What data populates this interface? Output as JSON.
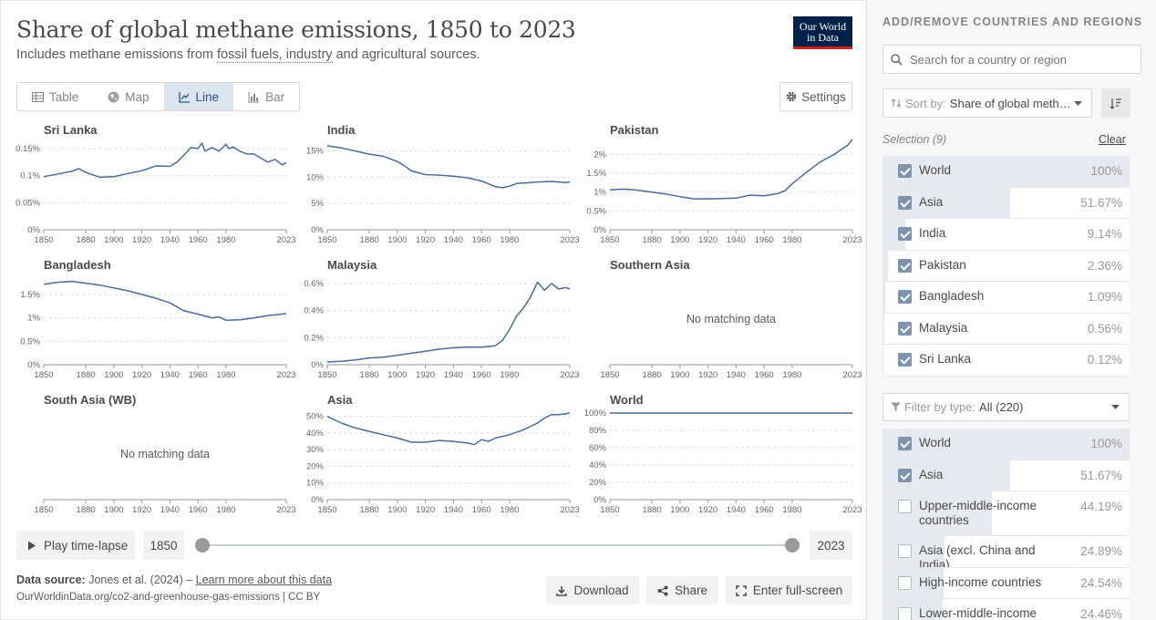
{
  "header": {
    "title": "Share of global methane emissions, 1850 to 2023",
    "subtitle_pre": "Includes methane emissions from ",
    "subtitle_link": "fossil fuels, industry",
    "subtitle_post": " and agricultural sources.",
    "logo_line1": "Our World",
    "logo_line2": "in Data"
  },
  "tabs": [
    {
      "label": "Table",
      "icon": "table-icon"
    },
    {
      "label": "Map",
      "icon": "globe-icon"
    },
    {
      "label": "Line",
      "icon": "line-chart-icon",
      "active": true
    },
    {
      "label": "Bar",
      "icon": "bar-chart-icon"
    }
  ],
  "settings_label": "Settings",
  "timeline": {
    "play_label": "Play time-lapse",
    "start": "1850",
    "end": "2023"
  },
  "footer": {
    "source_label": "Data source:",
    "source_text": " Jones et al. (2024) – ",
    "source_link": "Learn more about this data",
    "url": "OurWorldinData.org/co2-and-greenhouse-gas-emissions | CC BY",
    "download": "Download",
    "share": "Share",
    "fullscreen": "Enter full-screen"
  },
  "no_data_text": "No matching data",
  "chart_data": [
    {
      "type": "line",
      "title": "Sri Lanka",
      "x_ticks": [
        "1850",
        "1880",
        "1900",
        "1920",
        "1940",
        "1960",
        "1980",
        "2023"
      ],
      "y_ticks": [
        "0%",
        "0.05%",
        "0.1%",
        "0.15%"
      ],
      "ylim": [
        0,
        0.16
      ],
      "x": [
        1850,
        1860,
        1870,
        1875,
        1880,
        1890,
        1900,
        1910,
        1920,
        1930,
        1940,
        1945,
        1950,
        1955,
        1960,
        1963,
        1965,
        1970,
        1975,
        1980,
        1982,
        1985,
        1990,
        1995,
        2000,
        2005,
        2010,
        2015,
        2020,
        2023
      ],
      "y": [
        0.098,
        0.103,
        0.108,
        0.113,
        0.106,
        0.097,
        0.098,
        0.104,
        0.109,
        0.118,
        0.117,
        0.125,
        0.138,
        0.152,
        0.15,
        0.16,
        0.145,
        0.152,
        0.145,
        0.158,
        0.15,
        0.153,
        0.145,
        0.14,
        0.14,
        0.132,
        0.125,
        0.13,
        0.12,
        0.124
      ]
    },
    {
      "type": "line",
      "title": "India",
      "x_ticks": [
        "1850",
        "1880",
        "1900",
        "1920",
        "1940",
        "1960",
        "1980",
        "2023"
      ],
      "y_ticks": [
        "0%",
        "5%",
        "10%",
        "15%"
      ],
      "ylim": [
        0,
        16.5
      ],
      "x": [
        1850,
        1860,
        1870,
        1880,
        1890,
        1900,
        1905,
        1910,
        1920,
        1930,
        1940,
        1950,
        1960,
        1970,
        1975,
        1980,
        1985,
        1990,
        2000,
        2010,
        2020,
        2023
      ],
      "y": [
        16.0,
        15.6,
        15.0,
        14.4,
        14.0,
        13.0,
        12.2,
        11.2,
        10.5,
        10.4,
        10.2,
        9.9,
        9.3,
        8.2,
        8.0,
        8.3,
        8.8,
        8.9,
        9.1,
        9.2,
        9.0,
        9.1
      ]
    },
    {
      "type": "line",
      "title": "Pakistan",
      "x_ticks": [
        "1850",
        "1880",
        "1900",
        "1920",
        "1940",
        "1960",
        "1980",
        "2023"
      ],
      "y_ticks": [
        "0%",
        "0.5%",
        "1%",
        "1.5%",
        "2%"
      ],
      "ylim": [
        0,
        2.3
      ],
      "x": [
        1850,
        1860,
        1870,
        1880,
        1890,
        1900,
        1910,
        1920,
        1930,
        1940,
        1950,
        1960,
        1970,
        1975,
        1980,
        1990,
        2000,
        2010,
        2020,
        2023
      ],
      "y": [
        1.06,
        1.08,
        1.05,
        1.0,
        0.95,
        0.88,
        0.82,
        0.82,
        0.83,
        0.84,
        0.92,
        0.9,
        0.96,
        1.04,
        1.22,
        1.52,
        1.8,
        2.0,
        2.26,
        2.4
      ]
    },
    {
      "type": "line",
      "title": "Bangladesh",
      "x_ticks": [
        "1850",
        "1880",
        "1900",
        "1920",
        "1940",
        "1960",
        "1980",
        "2023"
      ],
      "y_ticks": [
        "0%",
        "0.5%",
        "1%",
        "1.5%"
      ],
      "ylim": [
        0,
        1.85
      ],
      "x": [
        1850,
        1860,
        1870,
        1880,
        1890,
        1900,
        1910,
        1920,
        1930,
        1940,
        1950,
        1960,
        1970,
        1975,
        1980,
        1990,
        2000,
        2010,
        2020,
        2023
      ],
      "y": [
        1.72,
        1.76,
        1.78,
        1.74,
        1.7,
        1.64,
        1.58,
        1.5,
        1.42,
        1.32,
        1.15,
        1.08,
        1.0,
        1.02,
        0.95,
        0.96,
        1.0,
        1.05,
        1.08,
        1.09
      ]
    },
    {
      "type": "line",
      "title": "Malaysia",
      "x_ticks": [
        "1850",
        "1880",
        "1900",
        "1920",
        "1940",
        "1960",
        "1980",
        "2023"
      ],
      "y_ticks": [
        "0%",
        "0.2%",
        "0.4%",
        "0.6%"
      ],
      "ylim": [
        0,
        0.64
      ],
      "x": [
        1850,
        1860,
        1870,
        1880,
        1890,
        1900,
        1910,
        1920,
        1930,
        1940,
        1950,
        1960,
        1970,
        1975,
        1980,
        1985,
        1990,
        1995,
        2000,
        2005,
        2010,
        2015,
        2020,
        2023
      ],
      "y": [
        0.02,
        0.025,
        0.035,
        0.05,
        0.055,
        0.07,
        0.085,
        0.1,
        0.115,
        0.125,
        0.13,
        0.13,
        0.14,
        0.18,
        0.26,
        0.36,
        0.42,
        0.5,
        0.61,
        0.55,
        0.6,
        0.56,
        0.57,
        0.56
      ]
    },
    {
      "type": "line",
      "title": "Southern Asia",
      "x_ticks": [
        "1850",
        "1880",
        "1900",
        "1920",
        "1940",
        "1960",
        "1980",
        "2023"
      ],
      "y_ticks": [],
      "no_data": true,
      "x": [],
      "y": []
    },
    {
      "type": "line",
      "title": "South Asia (WB)",
      "x_ticks": [
        "1850",
        "1880",
        "1900",
        "1920",
        "1940",
        "1960",
        "1980",
        "2023"
      ],
      "y_ticks": [],
      "no_data": true,
      "x": [],
      "y": []
    },
    {
      "type": "line",
      "title": "Asia",
      "x_ticks": [
        "1850",
        "1880",
        "1900",
        "1920",
        "1940",
        "1960",
        "1980",
        "2023"
      ],
      "y_ticks": [
        "0%",
        "10%",
        "20%",
        "30%",
        "40%",
        "50%"
      ],
      "ylim": [
        0,
        52
      ],
      "x": [
        1850,
        1860,
        1870,
        1880,
        1890,
        1900,
        1910,
        1920,
        1930,
        1940,
        1950,
        1955,
        1960,
        1965,
        1970,
        1980,
        1990,
        2000,
        2005,
        2010,
        2015,
        2020,
        2023
      ],
      "y": [
        50,
        46,
        43,
        41,
        39,
        37,
        34.5,
        34.5,
        35.5,
        35,
        34,
        33,
        36,
        35,
        37,
        39,
        42,
        46,
        49,
        51,
        51,
        51.5,
        52
      ]
    },
    {
      "type": "line",
      "title": "World",
      "x_ticks": [
        "1850",
        "1880",
        "1900",
        "1920",
        "1940",
        "1960",
        "1980",
        "2023"
      ],
      "y_ticks": [
        "0%",
        "20%",
        "40%",
        "60%",
        "80%",
        "100%"
      ],
      "ylim": [
        0,
        100
      ],
      "x": [
        1850,
        2023
      ],
      "y": [
        100,
        100
      ]
    }
  ],
  "sidebar": {
    "title": "ADD/REMOVE COUNTRIES AND REGIONS",
    "search_placeholder": "Search for a country or region",
    "sort_label": "Sort by:",
    "sort_value": "Share of global meth…",
    "selection_label": "Selection (9)",
    "clear_label": "Clear",
    "filter_label": "Filter by type:",
    "filter_value": "All (220)",
    "selected": [
      {
        "name": "World",
        "pct": "100%",
        "share": 100,
        "checked": true
      },
      {
        "name": "Asia",
        "pct": "51.67%",
        "share": 51.67,
        "checked": true
      },
      {
        "name": "India",
        "pct": "9.14%",
        "share": 9.14,
        "checked": true
      },
      {
        "name": "Pakistan",
        "pct": "2.36%",
        "share": 2.36,
        "checked": true
      },
      {
        "name": "Bangladesh",
        "pct": "1.09%",
        "share": 1.09,
        "checked": true
      },
      {
        "name": "Malaysia",
        "pct": "0.56%",
        "share": 0.56,
        "checked": true
      },
      {
        "name": "Sri Lanka",
        "pct": "0.12%",
        "share": 0.12,
        "checked": true
      }
    ],
    "all": [
      {
        "name": "World",
        "pct": "100%",
        "share": 100,
        "checked": true
      },
      {
        "name": "Asia",
        "pct": "51.67%",
        "share": 51.67,
        "checked": true
      },
      {
        "name": "Upper-middle-income countries",
        "pct": "44.19%",
        "share": 44.19,
        "checked": false
      },
      {
        "name": "Asia (excl. China and India)",
        "pct": "24.89%",
        "share": 24.89,
        "checked": false
      },
      {
        "name": "High-income countries",
        "pct": "24.54%",
        "share": 24.54,
        "checked": false
      },
      {
        "name": "Lower-middle-income",
        "pct": "24.46%",
        "share": 24.46,
        "checked": false
      }
    ]
  },
  "colors": {
    "line": "#4c6a9c",
    "accent": "#2d5386",
    "logo_bg": "#002147",
    "logo_red": "#ce261e"
  }
}
